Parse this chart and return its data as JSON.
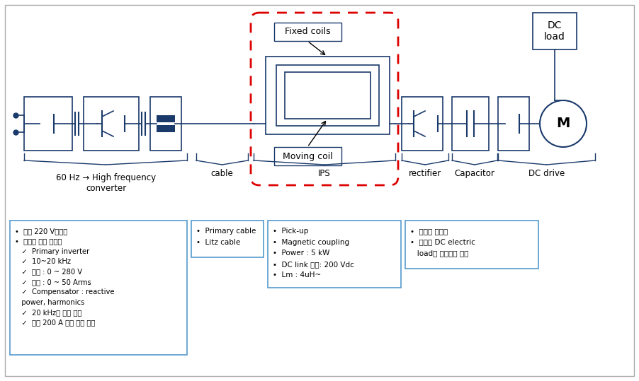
{
  "bg_color": "#ffffff",
  "box_edge": "#1a3a6b",
  "red_dashed": "#dd0000",
  "info_edge": "#5599cc",
  "text_color": "#000000",
  "info_box1_lines": [
    "•  단상 220 V정류기",
    "•  고주파 전원 인버터",
    "   ✓  Primary inverter",
    "   ✓  10~20 kHz",
    "   ✓  전압 : 0 ~ 280 V",
    "   ✓  전류 : 0 ~ 50 Arms",
    "   ✓  Compensator : reactive",
    "   power, harmonics",
    "   ✓  20 kHz로 공진 설계",
    "   ✓  최대 200 A 까지 구동 가능"
  ],
  "info_box2_lines": [
    "•  Primary cable",
    "•  Litz cable"
  ],
  "info_box3_lines": [
    "•  Pick-up",
    "•  Magnetic coupling",
    "•  Power : 5 kW",
    "•  DC link 전압: 200 Vdc",
    "•  Lm : 4uH~"
  ],
  "info_box4_lines": [
    "•  공진형 콘버티",
    "•  부하는 DC electric",
    "   load에 연결하여 시험"
  ],
  "fixed_coils": "Fixed coils",
  "moving_coil": "Moving coil",
  "lbl_converter": "60 Hz → High frequency\nconverter",
  "lbl_cable": "cable",
  "lbl_ips": "IPS",
  "lbl_rectifier": "rectifier",
  "lbl_capacitor": "Capacitor",
  "lbl_dc_drive": "DC drive",
  "lbl_dc_load": "DC\nload",
  "lbl_motor": "M"
}
